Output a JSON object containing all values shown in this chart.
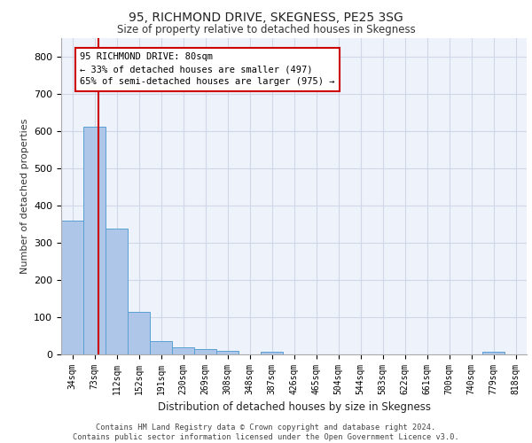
{
  "title1": "95, RICHMOND DRIVE, SKEGNESS, PE25 3SG",
  "title2": "Size of property relative to detached houses in Skegness",
  "xlabel": "Distribution of detached houses by size in Skegness",
  "ylabel": "Number of detached properties",
  "categories": [
    "34sqm",
    "73sqm",
    "112sqm",
    "152sqm",
    "191sqm",
    "230sqm",
    "269sqm",
    "308sqm",
    "348sqm",
    "387sqm",
    "426sqm",
    "465sqm",
    "504sqm",
    "544sqm",
    "583sqm",
    "622sqm",
    "661sqm",
    "700sqm",
    "740sqm",
    "779sqm",
    "818sqm"
  ],
  "values": [
    358,
    612,
    337,
    115,
    35,
    20,
    15,
    10,
    0,
    8,
    0,
    0,
    0,
    0,
    0,
    0,
    0,
    0,
    0,
    8,
    0
  ],
  "bar_color": "#aec6e8",
  "bar_edge_color": "#5a9fd4",
  "annotation_text": "95 RICHMOND DRIVE: 80sqm\n← 33% of detached houses are smaller (497)\n65% of semi-detached houses are larger (975) →",
  "annotation_box_color": "#ffffff",
  "annotation_border_color": "#cc0000",
  "red_line_color": "#cc0000",
  "grid_color": "#d0d8e8",
  "background_color": "#eef2fa",
  "footer1": "Contains HM Land Registry data © Crown copyright and database right 2024.",
  "footer2": "Contains public sector information licensed under the Open Government Licence v3.0.",
  "ylim": [
    0,
    850
  ],
  "yticks": [
    0,
    100,
    200,
    300,
    400,
    500,
    600,
    700,
    800
  ]
}
